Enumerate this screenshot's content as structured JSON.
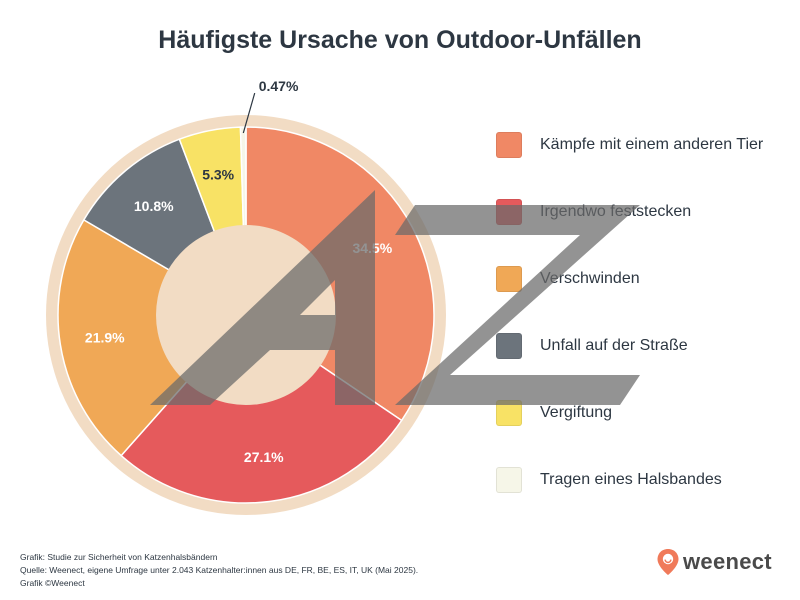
{
  "title": "Häufigste Ursache von Outdoor-Unfällen",
  "chart_data": {
    "type": "pie",
    "title": "Häufigste Ursache von Outdoor-Unfällen",
    "legend_position": "right",
    "slices": [
      {
        "label": "Kämpfe mit einem anderen Tier",
        "value": 34.5,
        "display": "34.5%",
        "color": "#f08865"
      },
      {
        "label": "Irgendwo feststecken",
        "value": 27.1,
        "display": "27.1%",
        "color": "#e55a5c"
      },
      {
        "label": "Verschwinden",
        "value": 21.9,
        "display": "21.9%",
        "color": "#f0a856"
      },
      {
        "label": "Unfall auf der Straße",
        "value": 10.8,
        "display": "10.8%",
        "color": "#6c747c"
      },
      {
        "label": "Vergiftung",
        "value": 5.3,
        "display": "5.3%",
        "color": "#f8e265"
      },
      {
        "label": "Tragen eines Halsbandes",
        "value": 0.47,
        "display": "0.47%",
        "color": "#f6f6e8"
      }
    ]
  },
  "footer": {
    "line1": "Grafik: Studie zur Sicherheit von Katzenhalsbändern",
    "line2": "Quelle: Weenect, eigene Umfrage unter 2.043 Katzenhalter:innen aus DE, FR, BE, ES, IT, UK (Mai 2025).",
    "line3": "Grafik ©Weenect"
  },
  "logo": {
    "text": "weenect",
    "color": "#f07a5a"
  },
  "watermark": {
    "text": "AZ"
  }
}
